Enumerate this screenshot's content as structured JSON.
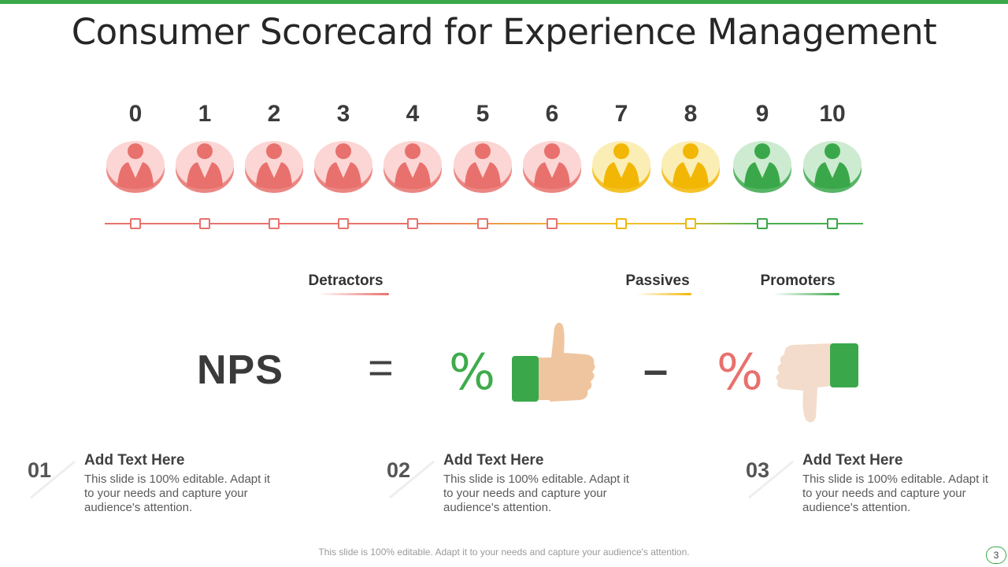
{
  "title": "Consumer Scorecard for Experience Management",
  "scale": [
    {
      "n": "0",
      "group": "detractor"
    },
    {
      "n": "1",
      "group": "detractor"
    },
    {
      "n": "2",
      "group": "detractor"
    },
    {
      "n": "3",
      "group": "detractor"
    },
    {
      "n": "4",
      "group": "detractor"
    },
    {
      "n": "5",
      "group": "detractor"
    },
    {
      "n": "6",
      "group": "detractor"
    },
    {
      "n": "7",
      "group": "passive"
    },
    {
      "n": "8",
      "group": "passive"
    },
    {
      "n": "9",
      "group": "promoter"
    },
    {
      "n": "10",
      "group": "promoter"
    }
  ],
  "colors": {
    "detractor": "#e8716d",
    "detractor_light": "#fbd6d5",
    "passive": "#f2b705",
    "passive_light": "#fbeeb5",
    "promoter": "#3aa84a",
    "promoter_light": "#cdebd0",
    "accent": "#3aa84a",
    "skin": "#efc5a0"
  },
  "categories": {
    "detractors": "Detractors",
    "passives": "Passives",
    "promoters": "Promoters"
  },
  "formula": {
    "nps": "NPS",
    "equals": "=",
    "promoters_pct": "%",
    "minus": "–",
    "detractors_pct": "%"
  },
  "items": [
    {
      "index": "01",
      "heading": "Add Text Here",
      "body": "This slide is 100% editable.  Adapt it to your needs and capture your audience's attention."
    },
    {
      "index": "02",
      "heading": "Add Text Here",
      "body": "This slide is 100% editable.  Adapt it to your needs and capture your audience's attention."
    },
    {
      "index": "03",
      "heading": "Add Text Here",
      "body": "This slide is 100% editable.  Adapt it to your needs and capture your audience's attention."
    }
  ],
  "footer": "This slide is 100% editable. Adapt it to your needs and capture your audience's attention.",
  "page_number": "3"
}
